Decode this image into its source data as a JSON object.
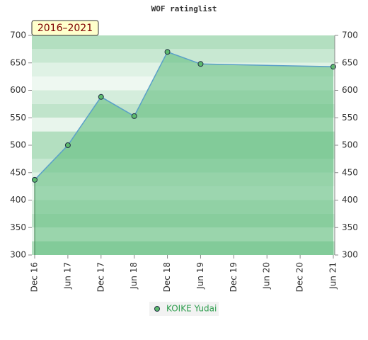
{
  "chart_data": {
    "type": "line",
    "title": "WOF ratinglist",
    "annotation": "2016–2021",
    "categories": [
      "Dec 16",
      "Jun 17",
      "Dec 17",
      "Jun 18",
      "Dec 18",
      "Jun 19",
      "Dec 19",
      "Jun 20",
      "Dec 20",
      "Jun 21"
    ],
    "series": [
      {
        "name": "KOIKE Yudai",
        "color": "#5aa0c8",
        "x": [
          "Dec 16",
          "Jun 17",
          "Dec 17",
          "Jun 18",
          "Dec 18",
          "Jun 19",
          "Jun 21"
        ],
        "values": [
          437,
          500,
          588,
          553,
          670,
          648,
          643
        ]
      }
    ],
    "ylim": [
      300,
      700
    ],
    "yticks": [
      300,
      350,
      400,
      450,
      500,
      550,
      600,
      650,
      700
    ],
    "y2lim": [
      300,
      700
    ],
    "y2ticks": [
      300,
      350,
      400,
      450,
      500,
      550,
      600,
      650,
      700
    ],
    "legend": "bottom"
  }
}
